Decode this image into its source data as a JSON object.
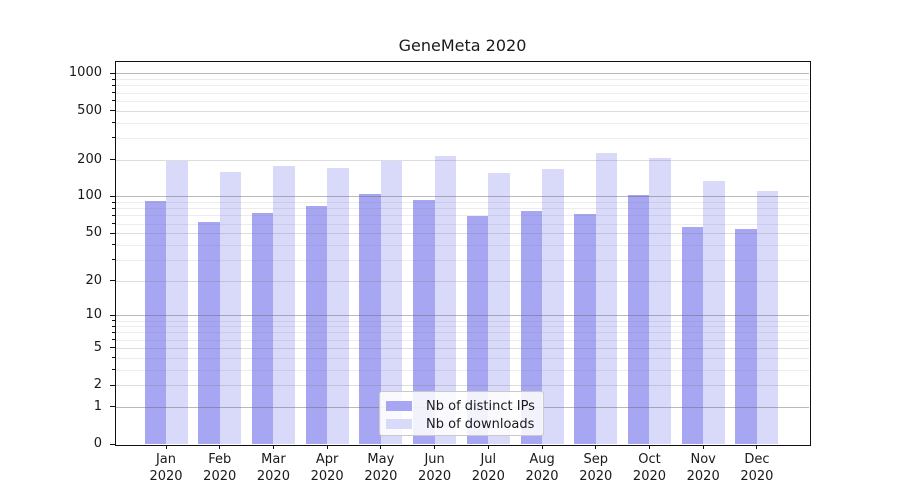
{
  "title": "GeneMeta 2020",
  "chart_data": {
    "type": "bar",
    "title": "GeneMeta 2020",
    "months": [
      "Jan",
      "Feb",
      "Mar",
      "Apr",
      "May",
      "Jun",
      "Jul",
      "Aug",
      "Sep",
      "Oct",
      "Nov",
      "Dec"
    ],
    "year": "2020",
    "series": [
      {
        "name": "Nb of distinct IPs",
        "color": "#a6a6f2",
        "values": [
          92,
          62,
          73,
          83,
          105,
          93,
          69,
          76,
          72,
          103,
          56,
          54
        ]
      },
      {
        "name": "Nb of downloads",
        "color": "#d9d9f9",
        "values": [
          193,
          157,
          178,
          172,
          196,
          215,
          155,
          169,
          227,
          204,
          135,
          110
        ]
      }
    ],
    "y_ticks": [
      0,
      1,
      2,
      5,
      10,
      20,
      50,
      100,
      200,
      500,
      1000
    ],
    "y_minor_subs": [
      3,
      4,
      6,
      7,
      8,
      9
    ],
    "y_decade_ticks": [
      1,
      10,
      100,
      1000
    ],
    "y_scale": "log10(value+1)",
    "ylim": [
      0,
      1280
    ],
    "xlabel": "",
    "ylabel": "",
    "grid": true,
    "legend_position": "lower center inside"
  },
  "legend": {
    "items": [
      {
        "label": "Nb of distinct IPs",
        "color": "#a6a6f2"
      },
      {
        "label": "Nb of downloads",
        "color": "#d9d9f9"
      }
    ]
  }
}
